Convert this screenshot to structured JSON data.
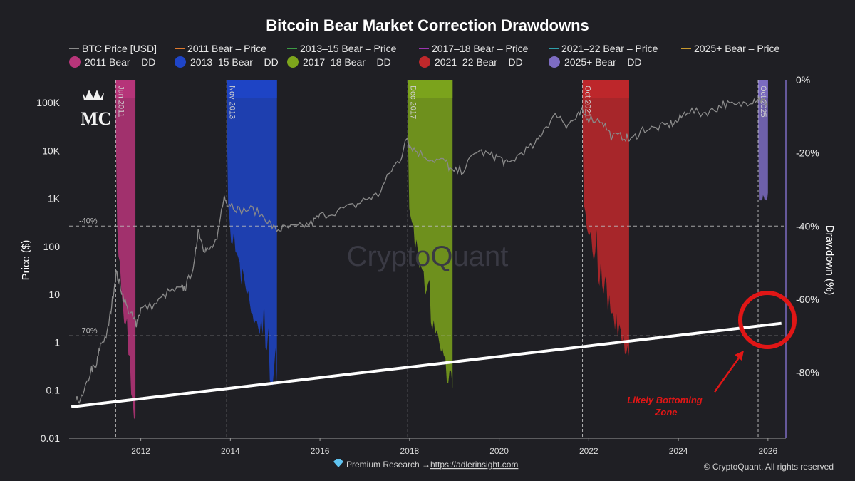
{
  "chart_data": {
    "type": "line",
    "title": "Bitcoin Bear Market Correction Drawdowns",
    "ylabel": "Price ($)",
    "y2label": "Drawdown (%)",
    "yscale": "log",
    "ylim": [
      0.01,
      300000
    ],
    "y2lim": [
      -98,
      0
    ],
    "xlim": [
      2010.4,
      2026.4
    ],
    "grid": false,
    "legend_placement": "top",
    "x_ticks": [
      "2012",
      "2014",
      "2016",
      "2018",
      "2020",
      "2022",
      "2024",
      "2026"
    ],
    "x_tick_values": [
      2012,
      2014,
      2016,
      2018,
      2020,
      2022,
      2024,
      2026
    ],
    "y_ticks": [
      "0.01",
      "0.1",
      "1",
      "10",
      "100",
      "1K",
      "10K",
      "100K"
    ],
    "y_tick_values": [
      0.01,
      0.1,
      1,
      10,
      100,
      1000,
      10000,
      100000
    ],
    "y2_ticks": [
      "0%",
      "-20%",
      "-40%",
      "-60%",
      "-80%"
    ],
    "y2_tick_values": [
      0,
      -20,
      -40,
      -60,
      -80
    ],
    "legend": [
      {
        "label": "BTC Price [USD]",
        "kind": "line",
        "color": "#8a8a8a"
      },
      {
        "label": "2011 Bear – Price",
        "kind": "line",
        "color": "#e07a2e"
      },
      {
        "label": "2013–15 Bear – Price",
        "kind": "line",
        "color": "#3d9b45"
      },
      {
        "label": "2017–18 Bear – Price",
        "kind": "line",
        "color": "#9b35b0"
      },
      {
        "label": "2021–22 Bear – Price",
        "kind": "line",
        "color": "#2f9faa"
      },
      {
        "label": "2025+ Bear – Price",
        "kind": "line",
        "color": "#c99a2e"
      },
      {
        "label": "2011 Bear – DD",
        "kind": "dot",
        "color": "#b8357a"
      },
      {
        "label": "2013–15 Bear – DD",
        "kind": "dot",
        "color": "#1f45c8"
      },
      {
        "label": "2017–18 Bear – DD",
        "kind": "dot",
        "color": "#7da51c"
      },
      {
        "label": "2021–22 Bear – DD",
        "kind": "dot",
        "color": "#c0282b"
      },
      {
        "label": "2025+ Bear – DD",
        "kind": "dot",
        "color": "#7d6cc2"
      }
    ],
    "btc_price": {
      "x": [
        2010.55,
        2010.7,
        2010.9,
        2011.0,
        2011.1,
        2011.25,
        2011.35,
        2011.45,
        2011.55,
        2011.7,
        2011.85,
        2011.9,
        2012.0,
        2012.3,
        2012.6,
        2012.9,
        2013.0,
        2013.2,
        2013.28,
        2013.4,
        2013.5,
        2013.7,
        2013.85,
        2013.92,
        2014.0,
        2014.2,
        2014.5,
        2014.8,
        2015.0,
        2015.2,
        2015.5,
        2015.8,
        2016.0,
        2016.4,
        2016.8,
        2017.0,
        2017.3,
        2017.6,
        2017.8,
        2017.95,
        2018.0,
        2018.2,
        2018.5,
        2018.8,
        2018.95,
        2019.2,
        2019.5,
        2019.8,
        2020.0,
        2020.2,
        2020.5,
        2020.8,
        2021.0,
        2021.3,
        2021.5,
        2021.7,
        2021.85,
        2022.0,
        2022.3,
        2022.5,
        2022.8,
        2022.95,
        2023.2,
        2023.5,
        2023.8,
        2024.0,
        2024.2,
        2024.5,
        2024.8,
        2025.0,
        2025.3,
        2025.6,
        2025.78,
        2025.9,
        2026.0
      ],
      "values": [
        0.06,
        0.07,
        0.28,
        0.3,
        0.9,
        1.5,
        6,
        29,
        14,
        5,
        3,
        2.5,
        5,
        6,
        11,
        13,
        14,
        45,
        230,
        95,
        80,
        125,
        1100,
        800,
        800,
        560,
        600,
        380,
        220,
        240,
        250,
        300,
        430,
        560,
        720,
        970,
        1200,
        4000,
        7000,
        19000,
        13000,
        9000,
        6500,
        6000,
        3500,
        4000,
        10000,
        8000,
        7200,
        5000,
        9200,
        13000,
        29000,
        58000,
        35000,
        45000,
        64000,
        47000,
        42000,
        20000,
        19500,
        16500,
        28000,
        29000,
        35000,
        42000,
        70000,
        60000,
        70000,
        95000,
        85000,
        110000,
        124000,
        105000,
        90000
      ]
    },
    "bear_periods": [
      {
        "label": "Jun 2011",
        "start": 2011.44,
        "end": 2011.88,
        "color": "#b8357a",
        "min_drawdown": -93
      },
      {
        "label": "Nov 2013",
        "start": 2013.92,
        "end": 2015.04,
        "color": "#1f45c8",
        "min_drawdown": -85
      },
      {
        "label": "Dec 2017",
        "start": 2017.96,
        "end": 2018.96,
        "color": "#7da51c",
        "min_drawdown": -84
      },
      {
        "label": "Oct 2021",
        "start": 2021.86,
        "end": 2022.9,
        "color": "#c0282b",
        "min_drawdown": -77
      },
      {
        "label": "Oct 2025",
        "start": 2025.78,
        "end": 2026.0,
        "color": "#7d6cc2",
        "min_drawdown": -31
      }
    ],
    "reference_lines": [
      {
        "label": "-40%",
        "drawdown": -40
      },
      {
        "label": "-70%",
        "drawdown": -70
      }
    ],
    "annotation": {
      "text_line1": "Likely Bottoming",
      "text_line2": "Zone",
      "color": "#e01616"
    },
    "trendline": {
      "x": [
        2010.45,
        2026.3
      ],
      "values": [
        0.045,
        2.5
      ],
      "color": "#ffffff"
    }
  },
  "watermark": "CryptoQuant",
  "logo": {
    "text": "MC"
  },
  "footer": {
    "premium": "Premium Research →",
    "link": "https://adlerinsight.com",
    "copyright": "© CryptoQuant. All rights reserved"
  }
}
